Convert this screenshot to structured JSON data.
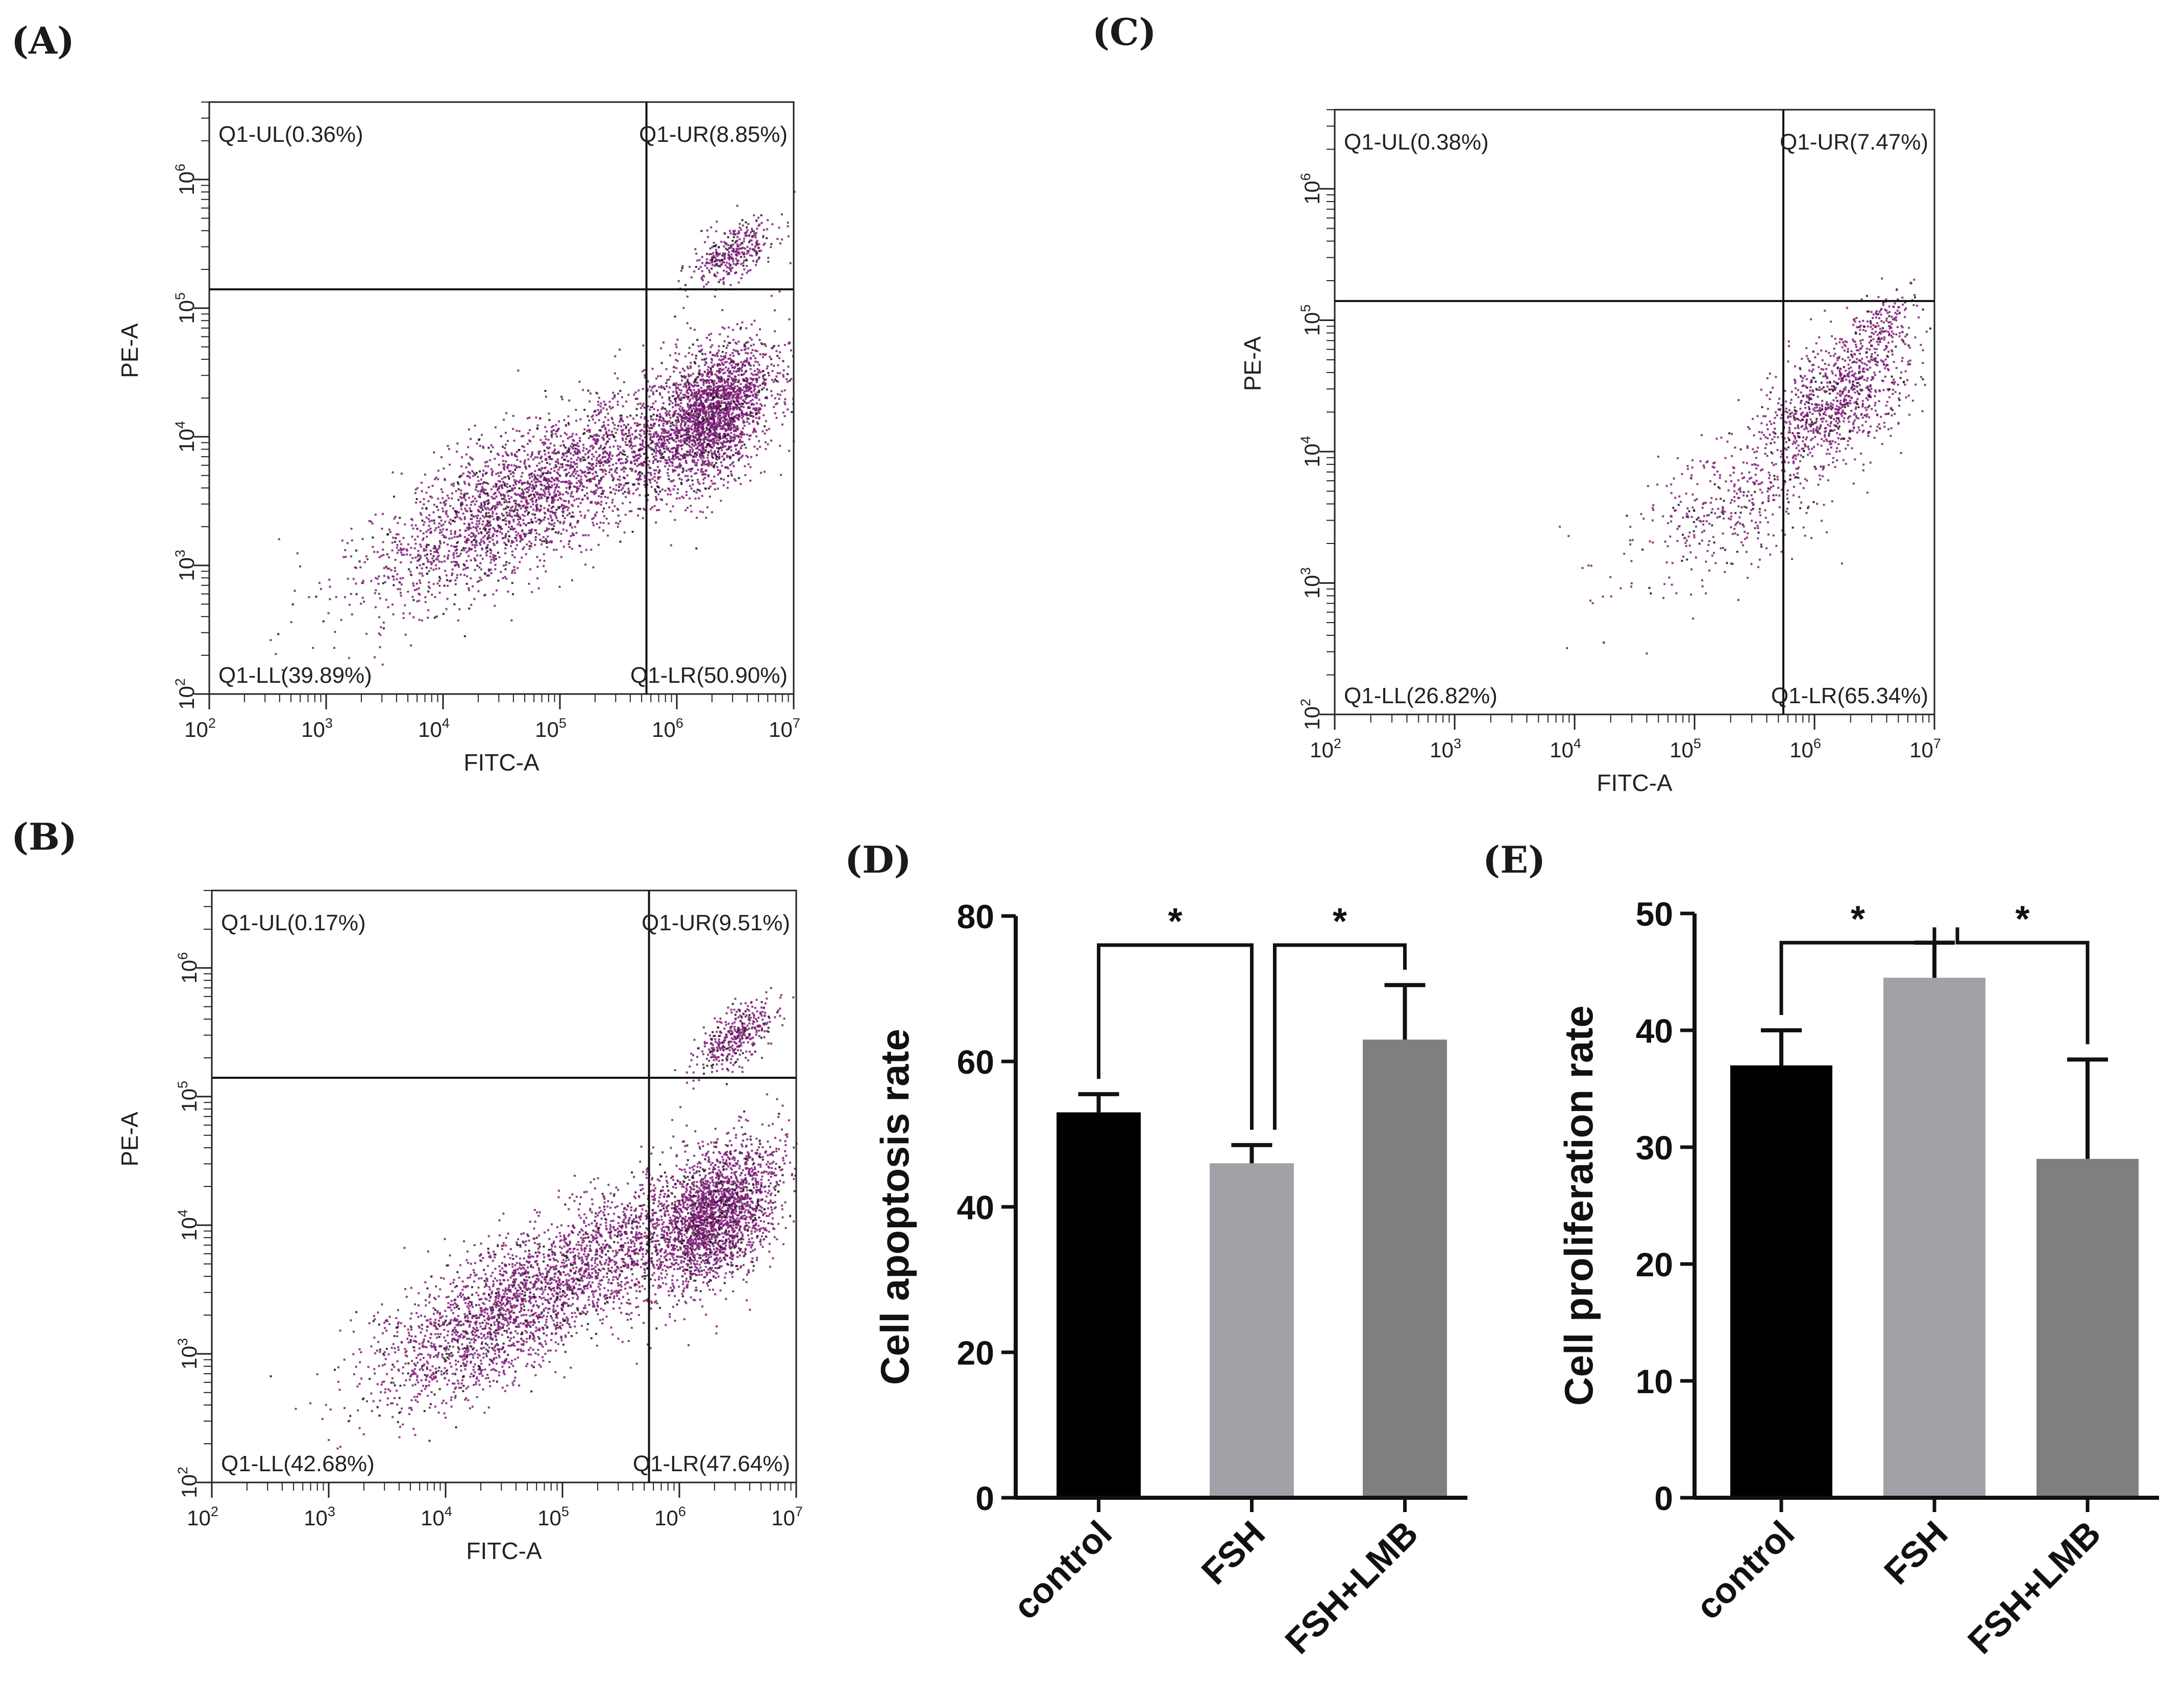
{
  "chart_data": [
    {
      "id": "A",
      "panel_label": "(A)",
      "type": "scatter",
      "subtype": "flow-cytometry",
      "xlabel": "FITC-A",
      "ylabel": "PE-A",
      "x_scale": "log",
      "y_scale": "log",
      "xlim": [
        100,
        10000000
      ],
      "ylim": [
        100,
        4000000
      ],
      "x_ticks": [
        {
          "base": "10",
          "exp": "2"
        },
        {
          "base": "10",
          "exp": "3"
        },
        {
          "base": "10",
          "exp": "4"
        },
        {
          "base": "10",
          "exp": "5"
        },
        {
          "base": "10",
          "exp": "6"
        },
        {
          "base": "10",
          "exp": "7"
        }
      ],
      "y_ticks": [
        {
          "base": "10",
          "exp": "2"
        },
        {
          "base": "10",
          "exp": "3"
        },
        {
          "base": "10",
          "exp": "4"
        },
        {
          "base": "10",
          "exp": "5"
        },
        {
          "base": "10",
          "exp": "6"
        }
      ],
      "gate": {
        "x": 550000,
        "y": 140000
      },
      "quadrants": {
        "UL": "Q1-UL(0.36%)",
        "UR": "Q1-UR(8.85%)",
        "LL": "Q1-LL(39.89%)",
        "LR": "Q1-LR(50.90%)"
      },
      "clusters": [
        {
          "cx": 2000000,
          "cy": 15000,
          "sx": 0.28,
          "sy": 0.42,
          "n": 2200
        },
        {
          "cx": 25000,
          "cy": 2500,
          "sx": 0.55,
          "sy": 0.45,
          "n": 1500
        },
        {
          "cx": 250000,
          "cy": 7000,
          "sx": 0.55,
          "sy": 0.45,
          "n": 1200
        },
        {
          "cx": 3000000,
          "cy": 280000,
          "sx": 0.18,
          "sy": 0.18,
          "n": 350
        }
      ],
      "point_color": "#7a1b74",
      "dark_color": "#141414"
    },
    {
      "id": "B",
      "panel_label": "(B)",
      "type": "scatter",
      "subtype": "flow-cytometry",
      "xlabel": "FITC-A",
      "ylabel": "PE-A",
      "x_scale": "log",
      "y_scale": "log",
      "xlim": [
        100,
        10000000
      ],
      "ylim": [
        100,
        4000000
      ],
      "x_ticks": [
        {
          "base": "10",
          "exp": "2"
        },
        {
          "base": "10",
          "exp": "3"
        },
        {
          "base": "10",
          "exp": "4"
        },
        {
          "base": "10",
          "exp": "5"
        },
        {
          "base": "10",
          "exp": "6"
        },
        {
          "base": "10",
          "exp": "7"
        }
      ],
      "y_ticks": [
        {
          "base": "10",
          "exp": "2"
        },
        {
          "base": "10",
          "exp": "3"
        },
        {
          "base": "10",
          "exp": "4"
        },
        {
          "base": "10",
          "exp": "5"
        },
        {
          "base": "10",
          "exp": "6"
        }
      ],
      "gate": {
        "x": 550000,
        "y": 140000
      },
      "quadrants": {
        "UL": "Q1-UL(0.17%)",
        "UR": "Q1-UR(9.51%)",
        "LL": "Q1-LL(42.68%)",
        "LR": "Q1-LR(47.64%)"
      },
      "clusters": [
        {
          "cx": 2000000,
          "cy": 12000,
          "sx": 0.28,
          "sy": 0.42,
          "n": 2100
        },
        {
          "cx": 25000,
          "cy": 2000,
          "sx": 0.55,
          "sy": 0.45,
          "n": 1700
        },
        {
          "cx": 250000,
          "cy": 6000,
          "sx": 0.55,
          "sy": 0.45,
          "n": 1200
        },
        {
          "cx": 3000000,
          "cy": 300000,
          "sx": 0.18,
          "sy": 0.18,
          "n": 380
        }
      ],
      "point_color": "#7a1b74",
      "dark_color": "#141414"
    },
    {
      "id": "C",
      "panel_label": "(C)",
      "type": "scatter",
      "subtype": "flow-cytometry",
      "xlabel": "FITC-A",
      "ylabel": "PE-A",
      "x_scale": "log",
      "y_scale": "log",
      "xlim": [
        100,
        10000000
      ],
      "ylim": [
        100,
        4000000
      ],
      "x_ticks": [
        {
          "base": "10",
          "exp": "2"
        },
        {
          "base": "10",
          "exp": "3"
        },
        {
          "base": "10",
          "exp": "4"
        },
        {
          "base": "10",
          "exp": "5"
        },
        {
          "base": "10",
          "exp": "6"
        },
        {
          "base": "10",
          "exp": "7"
        }
      ],
      "y_ticks": [
        {
          "base": "10",
          "exp": "2"
        },
        {
          "base": "10",
          "exp": "3"
        },
        {
          "base": "10",
          "exp": "4"
        },
        {
          "base": "10",
          "exp": "5"
        },
        {
          "base": "10",
          "exp": "6"
        }
      ],
      "gate": {
        "x": 550000,
        "y": 140000
      },
      "quadrants": {
        "UL": "Q1-UL(0.38%)",
        "UR": "Q1-UR(7.47%)",
        "LL": "Q1-LL(26.82%)",
        "LR": "Q1-LR(65.34%)"
      },
      "clusters": [
        {
          "cx": 1500000,
          "cy": 25000,
          "sx": 0.32,
          "sy": 0.38,
          "n": 900
        },
        {
          "cx": 200000,
          "cy": 4000,
          "sx": 0.45,
          "sy": 0.45,
          "n": 450
        },
        {
          "cx": 3500000,
          "cy": 90000,
          "sx": 0.15,
          "sy": 0.2,
          "n": 160
        }
      ],
      "point_color": "#7a1b74",
      "dark_color": "#141414"
    },
    {
      "id": "D",
      "panel_label": "(D)",
      "type": "bar",
      "ylabel": "Cell apoptosis rate",
      "categories": [
        "control",
        "FSH",
        "FSH+LMB"
      ],
      "values": [
        53,
        46,
        63
      ],
      "errors": [
        2.5,
        2.5,
        7.5
      ],
      "colors": [
        "#000000",
        "#a3a1a8",
        "#7f7f7f"
      ],
      "ylim": [
        0,
        80
      ],
      "y_ticks": [
        "0",
        "20",
        "40",
        "60",
        "80"
      ],
      "significance": [
        {
          "from": 0,
          "to": 1,
          "label": "*",
          "height": 76
        },
        {
          "from": 1,
          "to": 2,
          "label": "*",
          "height": 76
        }
      ]
    },
    {
      "id": "E",
      "panel_label": "(E)",
      "type": "bar",
      "ylabel": "Cell proliferation rate",
      "categories": [
        "control",
        "FSH",
        "FSH+LMB"
      ],
      "values": [
        37,
        44.5,
        29
      ],
      "errors": [
        3,
        3,
        8.5
      ],
      "colors": [
        "#000000",
        "#a3a1a8",
        "#7f7f7f"
      ],
      "ylim": [
        0,
        50
      ],
      "y_ticks": [
        "0",
        "10",
        "20",
        "30",
        "40",
        "50"
      ],
      "significance": [
        {
          "from": 0,
          "to": 1,
          "label": "*",
          "height": 47.5
        },
        {
          "from": 1,
          "to": 2,
          "label": "*",
          "height": 47.5
        }
      ]
    }
  ]
}
